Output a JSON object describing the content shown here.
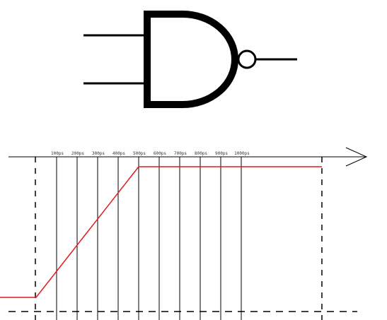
{
  "gate": {
    "type": "NAND",
    "inputs": 2,
    "stroke_color": "#000000"
  },
  "timing": {
    "time_labels": [
      "100ps",
      "200ps",
      "300ps",
      "400ps",
      "500ps",
      "600ps",
      "700ps",
      "800ps",
      "900ps",
      "1000ps"
    ],
    "axis_color": "#000000",
    "signal_color": "#e31a1c",
    "signal": {
      "low_before": "before 0ps",
      "rise_start": "0ps",
      "rise_end": "500ps",
      "level": "high after 500ps"
    }
  }
}
